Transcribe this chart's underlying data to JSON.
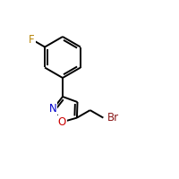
{
  "background": "#ffffff",
  "bond_color": "#000000",
  "atom_colors": {
    "F": "#b8860b",
    "N": "#0000cc",
    "O": "#cc0000",
    "Br": "#8b1a1a",
    "C": "#000000"
  },
  "bond_width": 1.4,
  "font_size_atoms": 8.5
}
